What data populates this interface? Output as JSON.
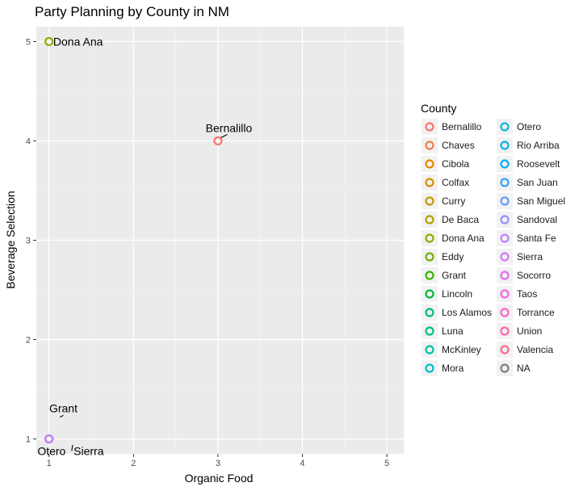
{
  "chart_data": {
    "type": "scatter",
    "title": "Party Planning by County in NM",
    "xlabel": "Organic Food",
    "ylabel": "Beverage Selection",
    "xlim": [
      0.85,
      5.2
    ],
    "ylim": [
      0.85,
      5.15
    ],
    "x_ticks": [
      1,
      2,
      3,
      4,
      5
    ],
    "y_ticks": [
      1,
      2,
      3,
      4,
      5
    ],
    "grid": true,
    "legend_position": "right",
    "legend": {
      "title": "County",
      "entries": [
        {
          "label": "Bernalillo",
          "color": "#F8766D"
        },
        {
          "label": "Chaves",
          "color": "#F17E4E"
        },
        {
          "label": "Cibola",
          "color": "#E38900"
        },
        {
          "label": "Colfax",
          "color": "#D39200"
        },
        {
          "label": "Curry",
          "color": "#C49A00"
        },
        {
          "label": "De Baca",
          "color": "#B0A100"
        },
        {
          "label": "Dona Ana",
          "color": "#93AA00"
        },
        {
          "label": "Eddy",
          "color": "#72B000"
        },
        {
          "label": "Grant",
          "color": "#39B600"
        },
        {
          "label": "Lincoln",
          "color": "#00BA38"
        },
        {
          "label": "Los Alamos",
          "color": "#00BE6C"
        },
        {
          "label": "Luna",
          "color": "#00C08B"
        },
        {
          "label": "McKinley",
          "color": "#00C1A7"
        },
        {
          "label": "Mora",
          "color": "#00BFC4"
        },
        {
          "label": "Otero",
          "color": "#00BCD8"
        },
        {
          "label": "Rio Arriba",
          "color": "#00B6EB"
        },
        {
          "label": "Roosevelt",
          "color": "#00B0F6"
        },
        {
          "label": "San Juan",
          "color": "#35A2FF"
        },
        {
          "label": "San Miguel",
          "color": "#619CFF"
        },
        {
          "label": "Sandoval",
          "color": "#9590FF"
        },
        {
          "label": "Santa Fe",
          "color": "#B983FF"
        },
        {
          "label": "Sierra",
          "color": "#D277FF"
        },
        {
          "label": "Socorro",
          "color": "#E76BF3"
        },
        {
          "label": "Taos",
          "color": "#F564E3"
        },
        {
          "label": "Torrance",
          "color": "#FF61C9"
        },
        {
          "label": "Union",
          "color": "#FF64B0"
        },
        {
          "label": "Valencia",
          "color": "#FF6C91"
        },
        {
          "label": "NA",
          "color": "#7F7F7F"
        }
      ]
    },
    "points": [
      {
        "county": "Dona Ana",
        "x": 1,
        "y": 5,
        "color": "#93AA00"
      },
      {
        "county": "Bernalillo",
        "x": 3,
        "y": 4,
        "color": "#F8766D"
      },
      {
        "county": "Grant",
        "x": 1,
        "y": 1,
        "color": "#39B600"
      },
      {
        "county": "Otero",
        "x": 1,
        "y": 1,
        "color": "#00BCD8"
      },
      {
        "county": "Sierra",
        "x": 1,
        "y": 1,
        "color": "#D277FF"
      }
    ],
    "point_labels": [
      {
        "text": "Dona Ana",
        "x": 1.05,
        "y": 5,
        "anchor": "start",
        "leader": false
      },
      {
        "text": "Bernalillo",
        "x": 3.13,
        "y": 4.13,
        "anchor": "middle",
        "leader": true,
        "from": [
          3.03,
          4.03
        ]
      },
      {
        "text": "Grant",
        "x": 1.17,
        "y": 1.31,
        "anchor": "middle",
        "leader": true,
        "from": [
          1.13,
          1.22
        ]
      },
      {
        "text": "Otero",
        "x": 1.03,
        "y": 0.88,
        "anchor": "middle",
        "leader": false
      },
      {
        "text": "Sierra",
        "x": 1.47,
        "y": 0.88,
        "anchor": "middle",
        "leader": true,
        "from": [
          1.28,
          0.94
        ]
      }
    ]
  }
}
